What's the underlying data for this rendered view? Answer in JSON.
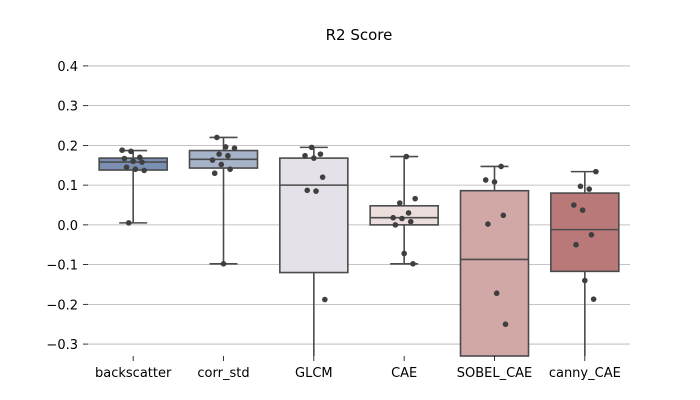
{
  "chart_data": {
    "type": "box",
    "title": "R2 Score",
    "xlabel": "",
    "ylabel": "",
    "ylim": [
      -0.33,
      0.43
    ],
    "yticks": [
      0.4,
      0.3,
      0.2,
      0.1,
      0.0,
      -0.1,
      -0.2,
      -0.3
    ],
    "ytick_labels": [
      "0.4",
      "0.3",
      "0.2",
      "0.1",
      "0.0",
      "−0.1",
      "−0.2",
      "−0.3"
    ],
    "grid": "horizontal",
    "categories": [
      "backscatter",
      "corr_std",
      "GLCM",
      "CAE",
      "SOBEL_CAE",
      "canny_CAE"
    ],
    "series": [
      {
        "category": "backscatter",
        "color": "#7b8fb3",
        "whisker_low": 0.005,
        "q1": 0.138,
        "median": 0.158,
        "q3": 0.168,
        "whisker_high": 0.187,
        "points": [
          0.188,
          0.185,
          0.17,
          0.167,
          0.16,
          0.158,
          0.145,
          0.14,
          0.137,
          0.005
        ]
      },
      {
        "category": "corr_std",
        "color": "#a7b3c8",
        "whisker_low": -0.098,
        "q1": 0.143,
        "median": 0.165,
        "q3": 0.187,
        "whisker_high": 0.22,
        "points": [
          0.22,
          0.196,
          0.193,
          0.178,
          0.174,
          0.163,
          0.152,
          0.14,
          0.13,
          -0.098
        ]
      },
      {
        "category": "GLCM",
        "color": "#e4e2e8",
        "whisker_low": -0.33,
        "q1": -0.12,
        "median": 0.1,
        "q3": 0.168,
        "whisker_high": 0.195,
        "points": [
          0.195,
          0.178,
          0.174,
          0.168,
          0.12,
          0.087,
          0.085,
          -0.188
        ]
      },
      {
        "category": "CAE",
        "color": "#ecdedd",
        "whisker_low": -0.098,
        "q1": 0.0,
        "median": 0.018,
        "q3": 0.048,
        "whisker_high": 0.172,
        "points": [
          0.172,
          0.066,
          0.055,
          0.03,
          0.018,
          0.016,
          0.008,
          0.0,
          -0.072,
          -0.098
        ]
      },
      {
        "category": "SOBEL_CAE",
        "color": "#d2a8a7",
        "whisker_low": -0.33,
        "q1": -0.33,
        "median": -0.087,
        "q3": 0.086,
        "whisker_high": 0.147,
        "points": [
          0.147,
          0.113,
          0.108,
          0.024,
          0.002,
          -0.172,
          -0.25
        ]
      },
      {
        "category": "canny_CAE",
        "color": "#b97979",
        "whisker_low": -0.33,
        "q1": -0.117,
        "median": -0.012,
        "q3": 0.08,
        "whisker_high": 0.134,
        "points": [
          0.134,
          0.097,
          0.09,
          0.05,
          0.037,
          -0.025,
          -0.05,
          -0.14,
          -0.187
        ]
      }
    ]
  }
}
